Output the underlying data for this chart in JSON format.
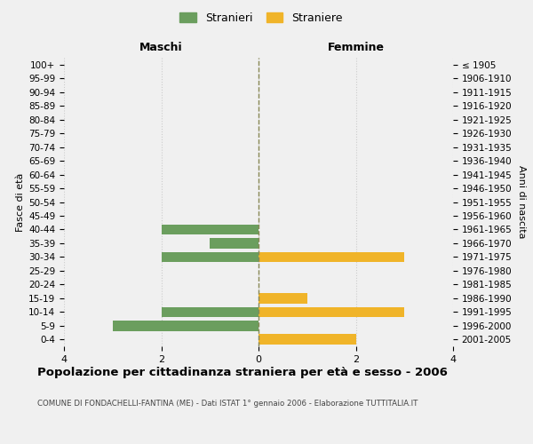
{
  "age_groups": [
    "100+",
    "95-99",
    "90-94",
    "85-89",
    "80-84",
    "75-79",
    "70-74",
    "65-69",
    "60-64",
    "55-59",
    "50-54",
    "45-49",
    "40-44",
    "35-39",
    "30-34",
    "25-29",
    "20-24",
    "15-19",
    "10-14",
    "5-9",
    "0-4"
  ],
  "birth_years": [
    "≤ 1905",
    "1906-1910",
    "1911-1915",
    "1916-1920",
    "1921-1925",
    "1926-1930",
    "1931-1935",
    "1936-1940",
    "1941-1945",
    "1946-1950",
    "1951-1955",
    "1956-1960",
    "1961-1965",
    "1966-1970",
    "1971-1975",
    "1976-1980",
    "1981-1985",
    "1986-1990",
    "1991-1995",
    "1996-2000",
    "2001-2005"
  ],
  "maschi": [
    0,
    0,
    0,
    0,
    0,
    0,
    0,
    0,
    0,
    0,
    0,
    0,
    2,
    1,
    2,
    0,
    0,
    0,
    2,
    3,
    0
  ],
  "femmine": [
    0,
    0,
    0,
    0,
    0,
    0,
    0,
    0,
    0,
    0,
    0,
    0,
    0,
    0,
    3,
    0,
    0,
    1,
    3,
    0,
    2
  ],
  "color_maschi": "#6b9e5e",
  "color_femmine": "#f0b429",
  "background_color": "#f0f0f0",
  "grid_color": "#cccccc",
  "title": "Popolazione per cittadinanza straniera per età e sesso - 2006",
  "subtitle": "COMUNE DI FONDACHELLI-FANTINA (ME) - Dati ISTAT 1° gennaio 2006 - Elaborazione TUTTITALIA.IT",
  "ylabel_left": "Fasce di età",
  "ylabel_right": "Anni di nascita",
  "xlabel_left": "Maschi",
  "xlabel_right": "Femmine",
  "legend_maschi": "Stranieri",
  "legend_femmine": "Straniere",
  "xlim": 4
}
